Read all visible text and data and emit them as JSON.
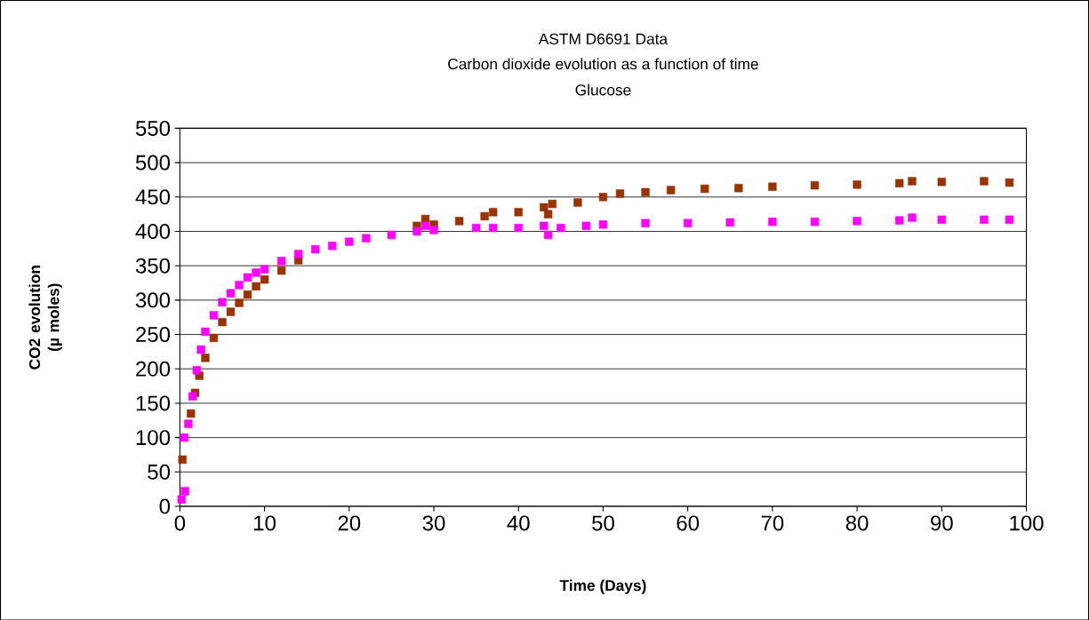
{
  "chart_data": {
    "type": "scatter",
    "title": "ASTM D6691 Data",
    "subtitle": "Carbon dioxide evolution as a function of time",
    "annotations": [
      "Glucose"
    ],
    "xlabel": "Time (Days)",
    "ylabel": "CO2 evolution (µ moles)",
    "xlim": [
      0,
      100
    ],
    "ylim": [
      0,
      550
    ],
    "xticks": [
      0,
      10,
      20,
      30,
      40,
      50,
      60,
      70,
      80,
      90,
      100
    ],
    "yticks": [
      0,
      50,
      100,
      150,
      200,
      250,
      300,
      350,
      400,
      450,
      500,
      550
    ],
    "grid": "y",
    "marker": "square",
    "series": [
      {
        "color": "#993300",
        "x": [
          0.3,
          1.3,
          1.8,
          2.3,
          3,
          4,
          5,
          6,
          7,
          8,
          9,
          10,
          12,
          14,
          28,
          29,
          30,
          33,
          36,
          37,
          40,
          43,
          43.5,
          44,
          47,
          50,
          52,
          55,
          58,
          62,
          66,
          70,
          75,
          80,
          85,
          86.5,
          90,
          95,
          98
        ],
        "values": [
          68,
          135,
          165,
          190,
          216,
          245,
          268,
          283,
          296,
          308,
          320,
          330,
          343,
          358,
          408,
          418,
          410,
          415,
          422,
          428,
          428,
          435,
          425,
          440,
          442,
          450,
          455,
          457,
          460,
          462,
          463,
          465,
          467,
          468,
          470,
          473,
          472,
          473,
          471
        ]
      },
      {
        "color": "#ff00ff",
        "x": [
          0.2,
          0.6,
          0.5,
          1,
          1.5,
          2,
          2.5,
          3,
          4,
          5,
          6,
          7,
          8,
          9,
          10,
          12,
          14,
          16,
          18,
          20,
          22,
          25,
          28,
          29,
          30,
          35,
          37,
          40,
          43,
          43.5,
          45,
          48,
          50,
          55,
          60,
          65,
          70,
          75,
          80,
          85,
          86.5,
          90,
          95,
          98
        ],
        "values": [
          10,
          22,
          100,
          120,
          160,
          198,
          228,
          254,
          278,
          297,
          310,
          322,
          333,
          340,
          345,
          357,
          367,
          374,
          379,
          385,
          390,
          395,
          400,
          408,
          402,
          405,
          405,
          405,
          408,
          395,
          405,
          408,
          410,
          412,
          412,
          413,
          414,
          414,
          415,
          416,
          420,
          417,
          417,
          417
        ]
      }
    ]
  }
}
